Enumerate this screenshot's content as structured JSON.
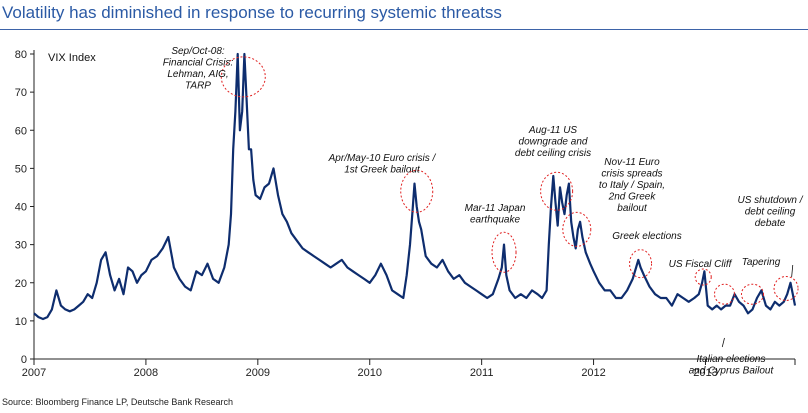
{
  "chart_data": {
    "type": "line",
    "title": "Volatility has diminished in response to recurring systemic threatss",
    "series_label": "VIX Index",
    "xlabel": "",
    "ylabel": "",
    "ylim": [
      0,
      80
    ],
    "yticks": [
      "0",
      "10",
      "20",
      "30",
      "40",
      "50",
      "60",
      "70",
      "80"
    ],
    "xlim": [
      2007.0,
      2013.8
    ],
    "xticks": [
      "2007",
      "2008",
      "2009",
      "2010",
      "2011",
      "2012",
      "2013"
    ],
    "series": [
      {
        "name": "VIX Index",
        "x": [
          2007.0,
          2007.04,
          2007.08,
          2007.12,
          2007.16,
          2007.2,
          2007.24,
          2007.28,
          2007.32,
          2007.36,
          2007.4,
          2007.44,
          2007.48,
          2007.52,
          2007.56,
          2007.6,
          2007.64,
          2007.68,
          2007.72,
          2007.76,
          2007.8,
          2007.84,
          2007.88,
          2007.92,
          2007.96,
          2008.0,
          2008.05,
          2008.1,
          2008.15,
          2008.2,
          2008.25,
          2008.3,
          2008.35,
          2008.4,
          2008.45,
          2008.5,
          2008.55,
          2008.6,
          2008.65,
          2008.7,
          2008.74,
          2008.76,
          2008.78,
          2008.8,
          2008.82,
          2008.84,
          2008.86,
          2008.88,
          2008.9,
          2008.92,
          2008.94,
          2008.96,
          2008.98,
          2009.02,
          2009.06,
          2009.1,
          2009.14,
          2009.18,
          2009.22,
          2009.26,
          2009.3,
          2009.35,
          2009.4,
          2009.45,
          2009.5,
          2009.55,
          2009.6,
          2009.65,
          2009.7,
          2009.75,
          2009.8,
          2009.85,
          2009.9,
          2009.95,
          2010.0,
          2010.05,
          2010.1,
          2010.15,
          2010.2,
          2010.25,
          2010.3,
          2010.33,
          2010.36,
          2010.38,
          2010.4,
          2010.42,
          2010.44,
          2010.46,
          2010.5,
          2010.55,
          2010.6,
          2010.65,
          2010.7,
          2010.75,
          2010.8,
          2010.85,
          2010.9,
          2010.95,
          2011.0,
          2011.05,
          2011.1,
          2011.15,
          2011.18,
          2011.2,
          2011.22,
          2011.25,
          2011.3,
          2011.35,
          2011.4,
          2011.45,
          2011.5,
          2011.54,
          2011.58,
          2011.6,
          2011.62,
          2011.64,
          2011.66,
          2011.68,
          2011.7,
          2011.72,
          2011.74,
          2011.76,
          2011.78,
          2011.8,
          2011.82,
          2011.84,
          2011.86,
          2011.88,
          2011.9,
          2011.93,
          2011.97,
          2012.0,
          2012.05,
          2012.1,
          2012.15,
          2012.2,
          2012.25,
          2012.3,
          2012.35,
          2012.38,
          2012.4,
          2012.42,
          2012.45,
          2012.5,
          2012.55,
          2012.6,
          2012.65,
          2012.7,
          2012.75,
          2012.8,
          2012.85,
          2012.9,
          2012.94,
          2012.97,
          2012.99,
          2013.02,
          2013.06,
          2013.1,
          2013.14,
          2013.18,
          2013.22,
          2013.26,
          2013.3,
          2013.34,
          2013.38,
          2013.42,
          2013.46,
          2013.5,
          2013.54,
          2013.58,
          2013.62,
          2013.66,
          2013.7,
          2013.73,
          2013.76,
          2013.78,
          2013.8
        ],
        "values": [
          12,
          11,
          10.5,
          11,
          13,
          18,
          14,
          13,
          12.5,
          13,
          14,
          15,
          17,
          16,
          20,
          26,
          28,
          22,
          18,
          21,
          17,
          24,
          23,
          20,
          22,
          23,
          26,
          27,
          29,
          32,
          24,
          21,
          19,
          18,
          23,
          22,
          25,
          21,
          20,
          24,
          30,
          38,
          55,
          65,
          80,
          60,
          65,
          80,
          68,
          55,
          55,
          47,
          43,
          42,
          45,
          46,
          50,
          43,
          38,
          36,
          33,
          31,
          29,
          28,
          27,
          26,
          25,
          24,
          25,
          26,
          24,
          23,
          22,
          21,
          20,
          22,
          25,
          22,
          18,
          17,
          16,
          22,
          30,
          38,
          46,
          40,
          36,
          34,
          27,
          25,
          24,
          26,
          23,
          21,
          22,
          20,
          19,
          18,
          17,
          16,
          17,
          21,
          24,
          30,
          22,
          18,
          16,
          17,
          16,
          18,
          17,
          16,
          18,
          30,
          40,
          48,
          41,
          35,
          45,
          41,
          38,
          43,
          46,
          36,
          32,
          29,
          34,
          36,
          32,
          28,
          25,
          23,
          20,
          18,
          18,
          16,
          16,
          18,
          21,
          24,
          26,
          24,
          22,
          19,
          17,
          16,
          16,
          14,
          17,
          16,
          15,
          16,
          17,
          20,
          23,
          14,
          13,
          14,
          13,
          14,
          14,
          17,
          15,
          14,
          12,
          13,
          16,
          18,
          14,
          13,
          15,
          14,
          15,
          17,
          20,
          17,
          14
        ]
      }
    ],
    "annotations": [
      {
        "lines": [
          "Sep/Oct-08:",
          "Financial Crisis:",
          "Lehman, AIG,",
          "TARP"
        ]
      },
      {
        "lines": [
          "Apr/May-10 Euro crisis /",
          "1st Greek bailout"
        ]
      },
      {
        "lines": [
          "Mar-11 Japan",
          "earthquake"
        ]
      },
      {
        "lines": [
          "Aug-11 US",
          "downgrade and",
          "debt ceiling crisis"
        ]
      },
      {
        "lines": [
          "Nov-11 Euro",
          "crisis spreads",
          "to Italy / Spain,",
          "2nd Greek",
          "bailout"
        ]
      },
      {
        "lines": [
          "Greek elections"
        ]
      },
      {
        "lines": [
          "US Fiscal Cliff"
        ]
      },
      {
        "lines": [
          "Italian elections",
          "and Cyprus Bailout"
        ]
      },
      {
        "lines": [
          "Tapering"
        ]
      },
      {
        "lines": [
          "US shutdown /",
          "debt ceiling",
          "debate"
        ]
      }
    ],
    "highlights": [
      {
        "x": 2008.87,
        "y": 74
      },
      {
        "x": 2010.42,
        "y": 44
      },
      {
        "x": 2011.2,
        "y": 28
      },
      {
        "x": 2011.67,
        "y": 44
      },
      {
        "x": 2011.85,
        "y": 34
      },
      {
        "x": 2012.42,
        "y": 25
      },
      {
        "x": 2012.98,
        "y": 21.5
      },
      {
        "x": 2013.17,
        "y": 17
      },
      {
        "x": 2013.42,
        "y": 17
      },
      {
        "x": 2013.72,
        "y": 18.5
      }
    ],
    "colors": {
      "line": "#0e2d6e",
      "title": "#2b5aa5",
      "circle": "#e02020",
      "axis": "#222222"
    },
    "source": "Source: Bloomberg Finance LP, Deutsche Bank Research"
  }
}
